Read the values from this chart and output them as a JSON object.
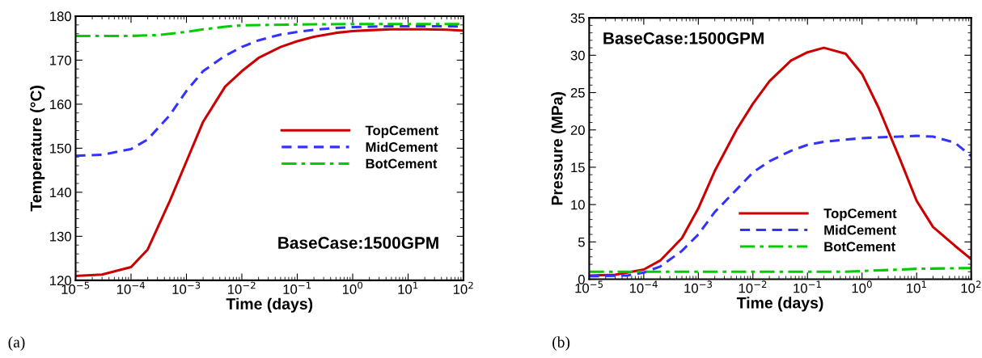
{
  "chart_data": [
    {
      "type": "line",
      "xlabel": "Time (days)",
      "ylabel": "Temperature (°C)",
      "log": "x",
      "xlim": [
        1e-05,
        100
      ],
      "ylim": [
        120,
        180
      ],
      "xticks": [
        {
          "value": 1e-05,
          "label": "10$^{−5}$"
        },
        {
          "value": 0.0001,
          "label": "10$^{−4}$"
        },
        {
          "value": 0.001,
          "label": "10$^{−3}$"
        },
        {
          "value": 0.01,
          "label": "10$^{−2}$"
        },
        {
          "value": 0.1,
          "label": "10$^{−1}$"
        },
        {
          "value": 1,
          "label": "10$^{0}$"
        },
        {
          "value": 10,
          "label": "10$^{1}$"
        },
        {
          "value": 100,
          "label": "10$^{2}$"
        }
      ],
      "yticks": [
        120,
        130,
        140,
        150,
        160,
        170,
        180
      ],
      "grid": false,
      "legend": "center right",
      "marker": "none",
      "annotations": [
        "BaseCase:1500GPM",
        "(a)"
      ],
      "series": [
        {
          "name": "TopCement",
          "color": "#cc0000",
          "line_style": "solid",
          "x": [
            1e-05,
            3e-05,
            0.0001,
            0.0002,
            0.0005,
            0.001,
            0.002,
            0.005,
            0.01,
            0.02,
            0.05,
            0.1,
            0.2,
            0.5,
            1,
            2,
            5,
            10,
            20,
            50,
            100
          ],
          "values": [
            121,
            121.3,
            123,
            127,
            138,
            147,
            156,
            164,
            167.5,
            170.5,
            173,
            174.3,
            175.3,
            176.2,
            176.6,
            176.8,
            177,
            177,
            177,
            176.9,
            176.7
          ]
        },
        {
          "name": "MidCement",
          "color": "#3333ff",
          "line_style": "dashed",
          "x": [
            1e-05,
            3e-05,
            0.0001,
            0.0002,
            0.0005,
            0.001,
            0.002,
            0.005,
            0.01,
            0.02,
            0.05,
            0.1,
            0.2,
            0.5,
            1,
            2,
            5,
            10,
            20,
            50,
            100
          ],
          "values": [
            148.3,
            148.5,
            149.8,
            152,
            157.5,
            163,
            167.5,
            171,
            173,
            174.5,
            175.8,
            176.4,
            176.9,
            177.3,
            177.5,
            177.6,
            177.7,
            177.7,
            177.7,
            177.7,
            177.6
          ]
        },
        {
          "name": "BotCement",
          "color": "#00cc00",
          "line_style": "dashdot",
          "x": [
            1e-05,
            0.0001,
            0.0003,
            0.001,
            0.002,
            0.005,
            0.01,
            0.1,
            1,
            10,
            100
          ],
          "values": [
            175.5,
            175.5,
            175.7,
            176.4,
            177,
            177.6,
            177.9,
            178.1,
            178.2,
            178.2,
            178.2
          ]
        }
      ]
    },
    {
      "type": "line",
      "xlabel": "Time (days)",
      "ylabel": "Pressure (MPa)",
      "log": "x",
      "xlim": [
        1e-05,
        100
      ],
      "ylim": [
        0,
        35
      ],
      "xticks": [
        {
          "value": 1e-05,
          "label": "10$^{−5}$"
        },
        {
          "value": 0.0001,
          "label": "10$^{−4}$"
        },
        {
          "value": 0.001,
          "label": "10$^{−3}$"
        },
        {
          "value": 0.01,
          "label": "10$^{−2}$"
        },
        {
          "value": 0.1,
          "label": "10$^{−1}$"
        },
        {
          "value": 1,
          "label": "10$^{0}$"
        },
        {
          "value": 10,
          "label": "10$^{1}$"
        },
        {
          "value": 100,
          "label": "10$^{2}$"
        }
      ],
      "yticks": [
        0,
        5,
        10,
        15,
        20,
        25,
        30,
        35
      ],
      "grid": false,
      "legend": "bottom",
      "marker": "none",
      "annotations": [
        "BaseCase:1500GPM",
        "(b)"
      ],
      "series": [
        {
          "name": "TopCement",
          "color": "#cc0000",
          "line_style": "solid",
          "x": [
            1e-05,
            3e-05,
            0.0001,
            0.0002,
            0.0005,
            0.001,
            0.002,
            0.005,
            0.01,
            0.02,
            0.05,
            0.1,
            0.2,
            0.5,
            1,
            2,
            5,
            10,
            20,
            50,
            100
          ],
          "values": [
            0.5,
            0.6,
            1.3,
            2.5,
            5.5,
            9.5,
            14.5,
            20,
            23.5,
            26.5,
            29.3,
            30.4,
            31,
            30.2,
            27.5,
            23,
            16,
            10.5,
            7,
            4.5,
            2.7
          ]
        },
        {
          "name": "MidCement",
          "color": "#3333ff",
          "line_style": "dashed",
          "x": [
            1e-05,
            5e-05,
            0.0001,
            0.0002,
            0.0005,
            0.001,
            0.002,
            0.005,
            0.01,
            0.02,
            0.05,
            0.1,
            0.2,
            0.5,
            1,
            2,
            5,
            10,
            20,
            50,
            100
          ],
          "values": [
            0.4,
            0.5,
            0.9,
            1.7,
            3.8,
            6,
            9,
            12,
            14.3,
            15.8,
            17.2,
            18,
            18.4,
            18.7,
            18.9,
            19,
            19.1,
            19.2,
            19.1,
            18.3,
            16.5
          ]
        },
        {
          "name": "BotCement",
          "color": "#00cc00",
          "line_style": "dashdot",
          "x": [
            1e-05,
            0.0001,
            0.01,
            0.1,
            0.5,
            1,
            5,
            10,
            100
          ],
          "values": [
            1.0,
            1.0,
            1.0,
            1.0,
            1.0,
            1.1,
            1.3,
            1.4,
            1.5
          ]
        }
      ]
    }
  ]
}
